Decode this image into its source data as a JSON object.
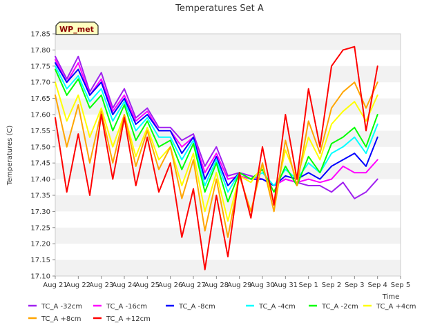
{
  "chart_data": {
    "type": "line",
    "title": "Temperatures Set A",
    "xlabel": "Time",
    "ylabel": "Temperatures (C)",
    "badge": "WP_met",
    "badge_bg": "#ffffc0",
    "badge_text_color": "#8b0000",
    "grid": "horizontal alternating bands",
    "band_color": "#f2f2f2",
    "legend_position": "bottom",
    "ylim": [
      17.1,
      17.85
    ],
    "yticks": [
      17.1,
      17.15,
      17.2,
      17.25,
      17.3,
      17.35,
      17.4,
      17.45,
      17.5,
      17.55,
      17.6,
      17.65,
      17.7,
      17.75,
      17.8,
      17.85
    ],
    "ytick_labels": [
      "17.10",
      "17.15",
      "17.20",
      "17.25",
      "17.30",
      "17.35",
      "17.40",
      "17.45",
      "17.50",
      "17.55",
      "17.60",
      "17.65",
      "17.70",
      "17.75",
      "17.80",
      "17.85"
    ],
    "xlim": [
      0,
      15
    ],
    "xticks": [
      0,
      1,
      2,
      3,
      4,
      5,
      6,
      7,
      8,
      9,
      10,
      11,
      12,
      13,
      14,
      15
    ],
    "xtick_labels": [
      "Aug 21",
      "Aug 22",
      "Aug 23",
      "Aug 24",
      "Aug 25",
      "Aug 26",
      "Aug 27",
      "Aug 28",
      "Aug 29",
      "Aug 30",
      "Aug 31",
      "Sep 1",
      "Sep 2",
      "Sep 3",
      "Sep 4",
      "Sep 5"
    ],
    "x": [
      0.0,
      0.5,
      1.0,
      1.5,
      2.0,
      2.5,
      3.0,
      3.5,
      4.0,
      4.5,
      5.0,
      5.5,
      6.0,
      6.5,
      7.0,
      7.5,
      8.0,
      8.5,
      9.0,
      9.5,
      10.0,
      10.5,
      11.0,
      11.5,
      12.0,
      12.5,
      13.0,
      13.5,
      14.0
    ],
    "series": [
      {
        "name": "TC_A -32cm",
        "color": "#a020f0",
        "values": [
          17.78,
          17.71,
          17.78,
          17.67,
          17.73,
          17.62,
          17.68,
          17.59,
          17.62,
          17.56,
          17.56,
          17.52,
          17.54,
          17.44,
          17.5,
          17.41,
          17.42,
          17.41,
          17.4,
          17.38,
          17.4,
          17.39,
          17.38,
          17.38,
          17.36,
          17.39,
          17.34,
          17.36,
          17.4
        ]
      },
      {
        "name": "TC_A -16cm",
        "color": "#ff00ff",
        "values": [
          17.77,
          17.7,
          17.76,
          17.66,
          17.71,
          17.61,
          17.66,
          17.58,
          17.61,
          17.55,
          17.55,
          17.5,
          17.53,
          17.42,
          17.48,
          17.4,
          17.41,
          17.4,
          17.4,
          17.38,
          17.4,
          17.39,
          17.4,
          17.39,
          17.4,
          17.44,
          17.42,
          17.42,
          17.46
        ]
      },
      {
        "name": "TC_A -8cm",
        "color": "#0000ff",
        "values": [
          17.76,
          17.7,
          17.74,
          17.66,
          17.7,
          17.6,
          17.65,
          17.57,
          17.6,
          17.55,
          17.55,
          17.48,
          17.53,
          17.4,
          17.47,
          17.38,
          17.42,
          17.4,
          17.4,
          17.38,
          17.41,
          17.4,
          17.42,
          17.4,
          17.44,
          17.46,
          17.48,
          17.44,
          17.53
        ]
      },
      {
        "name": "TC_A -4cm",
        "color": "#00ffff",
        "values": [
          17.75,
          17.68,
          17.72,
          17.64,
          17.68,
          17.58,
          17.64,
          17.55,
          17.59,
          17.53,
          17.53,
          17.46,
          17.52,
          17.38,
          17.46,
          17.36,
          17.42,
          17.4,
          17.42,
          17.38,
          17.43,
          17.4,
          17.45,
          17.42,
          17.48,
          17.5,
          17.53,
          17.48,
          17.57
        ]
      },
      {
        "name": "TC_A -2cm",
        "color": "#00ff00",
        "values": [
          17.74,
          17.66,
          17.71,
          17.62,
          17.66,
          17.55,
          17.63,
          17.52,
          17.58,
          17.5,
          17.52,
          17.43,
          17.51,
          17.36,
          17.45,
          17.33,
          17.42,
          17.4,
          17.43,
          17.36,
          17.44,
          17.38,
          17.47,
          17.42,
          17.51,
          17.53,
          17.56,
          17.5,
          17.6
        ]
      },
      {
        "name": "TC_A +4cm",
        "color": "#ffff00",
        "values": [
          17.7,
          17.58,
          17.66,
          17.53,
          17.62,
          17.5,
          17.6,
          17.47,
          17.56,
          17.46,
          17.5,
          17.38,
          17.48,
          17.3,
          17.42,
          17.27,
          17.41,
          17.39,
          17.44,
          17.33,
          17.49,
          17.4,
          17.53,
          17.46,
          17.57,
          17.61,
          17.64,
          17.58,
          17.66
        ]
      },
      {
        "name": "TC_A +8cm",
        "color": "#ffa500",
        "values": [
          17.66,
          17.5,
          17.63,
          17.45,
          17.61,
          17.45,
          17.6,
          17.44,
          17.55,
          17.43,
          17.5,
          17.34,
          17.46,
          17.24,
          17.4,
          17.22,
          17.41,
          17.3,
          17.45,
          17.3,
          17.52,
          17.38,
          17.58,
          17.48,
          17.62,
          17.67,
          17.7,
          17.62,
          17.7
        ]
      },
      {
        "name": "TC_A +12cm",
        "color": "#ff0000",
        "values": [
          17.59,
          17.36,
          17.54,
          17.35,
          17.6,
          17.4,
          17.59,
          17.38,
          17.53,
          17.36,
          17.45,
          17.22,
          17.37,
          17.12,
          17.35,
          17.16,
          17.42,
          17.28,
          17.5,
          17.32,
          17.6,
          17.4,
          17.68,
          17.5,
          17.75,
          17.8,
          17.81,
          17.55,
          17.75
        ]
      }
    ]
  }
}
